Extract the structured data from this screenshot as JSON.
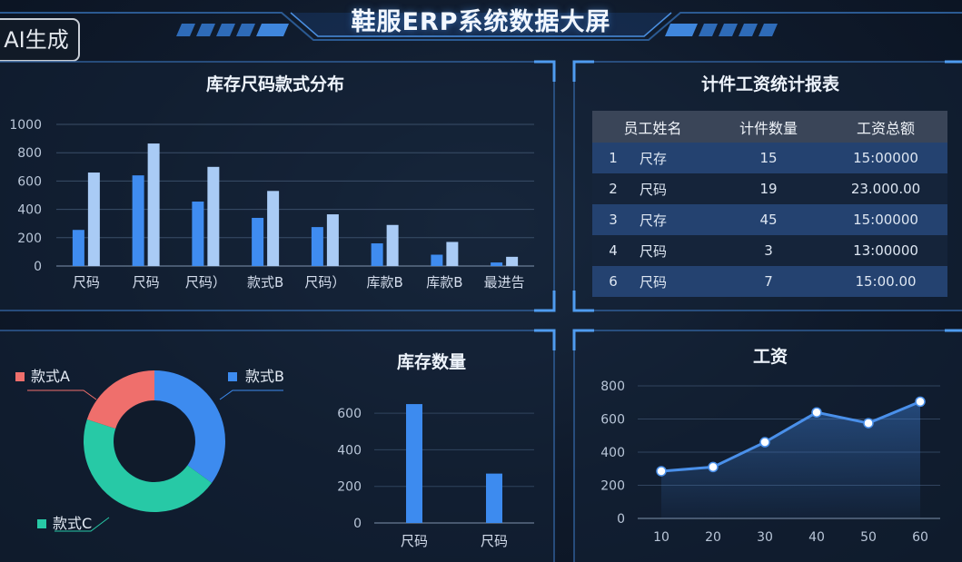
{
  "header": {
    "title": "鞋服ERP系统数据大屏",
    "badge": "AI生成"
  },
  "colors": {
    "accent": "#3f8cf0",
    "accent_light": "#a9cbf5",
    "panel_border": "#2f5d96",
    "teal": "#27c9a6",
    "salmon": "#ef6f6c",
    "blue": "#3d8bef"
  },
  "inventory_chart": {
    "title": "库存尺码款式分布",
    "chart_data": {
      "type": "bar",
      "categories": [
        "尺码",
        "尺码",
        "尺码）",
        "款式B",
        "尺码）",
        "库款B",
        "库款B",
        "最进告"
      ],
      "series": [
        {
          "values": [
            255,
            640,
            455,
            340,
            275,
            160,
            80,
            25
          ]
        },
        {
          "values": [
            660,
            865,
            700,
            530,
            365,
            290,
            170,
            65
          ]
        }
      ],
      "yticks": [
        0,
        200,
        400,
        600,
        800,
        1000
      ],
      "ylim": [
        0,
        1000
      ]
    }
  },
  "wage_table": {
    "title": "计件工资统计报表",
    "headers": [
      "员工姓名",
      "计件数量",
      "工资总额"
    ],
    "rows": [
      {
        "idx": "1",
        "name": "尺存",
        "qty": "15",
        "wage": "15:00000"
      },
      {
        "idx": "2",
        "name": "尺码",
        "qty": "19",
        "wage": "23.000.00"
      },
      {
        "idx": "3",
        "name": "尺存",
        "qty": "45",
        "wage": "15:00000"
      },
      {
        "idx": "4",
        "name": "尺码",
        "qty": "3",
        "wage": "13:00000"
      },
      {
        "idx": "6",
        "name": "尺码",
        "qty": "7",
        "wage": "15:00.00"
      }
    ]
  },
  "donut_chart": {
    "chart_data": {
      "type": "pie",
      "labels": [
        "款式B",
        "款式C",
        "款式A"
      ],
      "values": [
        35,
        45,
        20
      ],
      "colors": [
        "#3d8bef",
        "#27c9a6",
        "#ef6f6c"
      ]
    }
  },
  "stock_chart": {
    "title": "库存数量",
    "chart_data": {
      "type": "bar",
      "categories": [
        "尺码",
        "尺码"
      ],
      "values": [
        650,
        270
      ],
      "yticks": [
        0,
        200,
        400,
        600
      ],
      "ylim": [
        0,
        700
      ]
    }
  },
  "wage_chart": {
    "title": "工资",
    "chart_data": {
      "type": "area",
      "x": [
        10,
        20,
        30,
        40,
        50,
        60
      ],
      "y": [
        285,
        310,
        460,
        640,
        575,
        705
      ],
      "yticks": [
        0,
        200,
        400,
        600,
        800
      ],
      "ylim": [
        0,
        800
      ]
    }
  }
}
